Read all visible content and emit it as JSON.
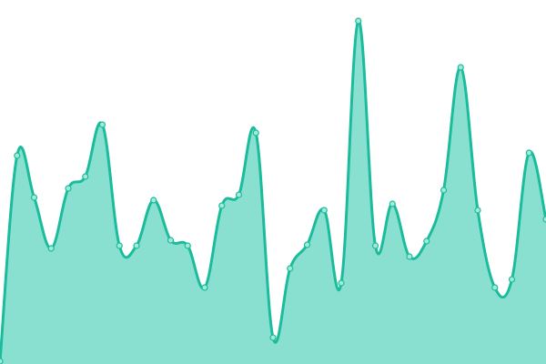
{
  "chart_data": {
    "type": "area",
    "title": "",
    "xlabel": "",
    "ylabel": "",
    "x": [
      0,
      1,
      2,
      3,
      4,
      5,
      6,
      7,
      8,
      9,
      10,
      11,
      12,
      13,
      14,
      15,
      16,
      17,
      18,
      19,
      20,
      21,
      22,
      23,
      24,
      25,
      26,
      27,
      28,
      29,
      30,
      31,
      32
    ],
    "values": [
      3,
      229,
      183,
      127,
      193,
      206,
      263,
      130,
      130,
      180,
      136,
      130,
      84,
      174,
      186,
      254,
      29,
      105,
      131,
      169,
      89,
      377,
      130,
      176,
      118,
      135,
      191,
      326,
      169,
      84,
      93,
      232,
      159
    ],
    "ylim": [
      0,
      400
    ],
    "grid": false,
    "axes_visible": false,
    "curve": "smooth",
    "markers": true,
    "colors": {
      "line": "#1abc9c",
      "fill": "#8ae0d0",
      "marker_fill": "#a3e9da",
      "marker_stroke": "#1abc9c"
    }
  }
}
